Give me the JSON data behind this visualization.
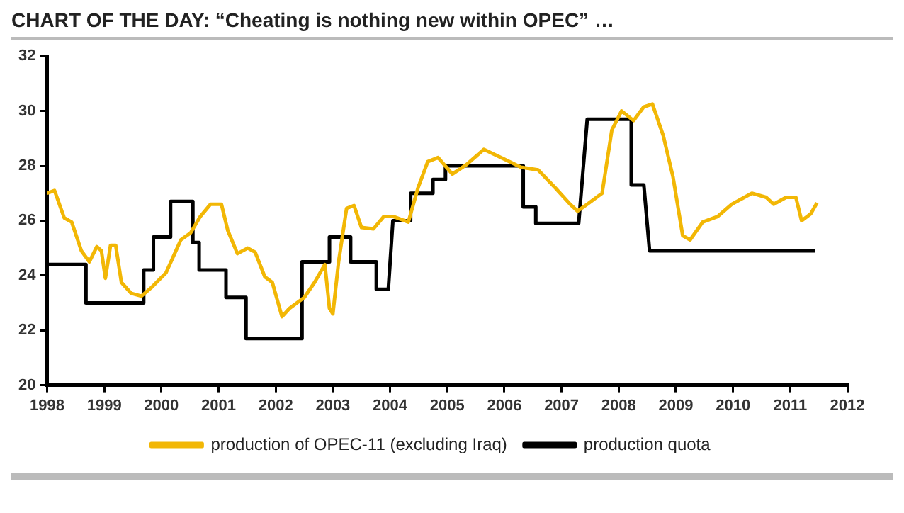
{
  "chart_data": {
    "type": "line",
    "title": "CHART OF THE DAY: “Cheating is nothing new within OPEC” …",
    "xlim": [
      1998,
      2012
    ],
    "xticks": [
      1998,
      1999,
      2000,
      2001,
      2002,
      2003,
      2004,
      2005,
      2006,
      2007,
      2008,
      2009,
      2010,
      2011,
      2012
    ],
    "ylim": [
      20,
      32
    ],
    "yticks": [
      20,
      22,
      24,
      26,
      28,
      30,
      32
    ],
    "grid": false,
    "legend": "bottom",
    "marker": "none",
    "line_style": "solid",
    "series": [
      {
        "name": "production of OPEC-11 (excluding Iraq)",
        "color": "#f2b705",
        "x": [
          1998.0,
          1998.13,
          1998.3,
          1998.43,
          1998.6,
          1998.74,
          1998.87,
          1998.95,
          1999.02,
          1999.11,
          1999.2,
          1999.3,
          1999.47,
          1999.65,
          1999.82,
          2000.08,
          2000.34,
          2000.51,
          2000.68,
          2000.86,
          2001.05,
          2001.16,
          2001.33,
          2001.51,
          2001.64,
          2001.81,
          2001.94,
          2002.11,
          2002.24,
          2002.5,
          2002.68,
          2002.86,
          2002.94,
          2003.0,
          2003.1,
          2003.24,
          2003.37,
          2003.5,
          2003.71,
          2003.89,
          2004.06,
          2004.32,
          2004.49,
          2004.66,
          2004.84,
          2005.09,
          2005.34,
          2005.64,
          2005.99,
          2006.29,
          2006.59,
          2006.89,
          2007.15,
          2007.28,
          2007.45,
          2007.71,
          2007.88,
          2008.05,
          2008.26,
          2008.44,
          2008.59,
          2008.78,
          2008.95,
          2009.12,
          2009.25,
          2009.47,
          2009.73,
          2009.98,
          2010.33,
          2010.58,
          2010.71,
          2010.93,
          2011.1,
          2011.2,
          2011.36,
          2011.47
        ],
        "values": [
          27.0,
          27.1,
          26.1,
          25.95,
          24.9,
          24.5,
          25.05,
          24.9,
          23.9,
          25.1,
          25.1,
          23.75,
          23.35,
          23.25,
          23.55,
          24.1,
          25.3,
          25.55,
          26.15,
          26.6,
          26.6,
          25.65,
          24.8,
          25.0,
          24.85,
          23.95,
          23.75,
          22.5,
          22.8,
          23.2,
          23.75,
          24.4,
          22.8,
          22.6,
          24.5,
          26.45,
          26.55,
          25.75,
          25.7,
          26.15,
          26.15,
          25.95,
          27.2,
          28.15,
          28.3,
          27.7,
          28.05,
          28.6,
          28.25,
          27.95,
          27.85,
          27.2,
          26.6,
          26.35,
          26.6,
          27.0,
          29.3,
          30.0,
          29.65,
          30.15,
          30.25,
          29.1,
          27.6,
          25.45,
          25.3,
          25.95,
          26.15,
          26.6,
          27.0,
          26.85,
          26.6,
          26.85,
          26.85,
          26.0,
          26.25,
          26.65
        ]
      },
      {
        "name": "production quota",
        "color": "#000000",
        "x": [
          1998.0,
          1998.68,
          1998.68,
          1999.69,
          1999.69,
          1999.86,
          1999.86,
          2000.16,
          2000.16,
          2000.55,
          2000.55,
          2000.66,
          2000.66,
          2001.13,
          2001.13,
          2001.48,
          2001.48,
          2002.46,
          2002.46,
          2002.94,
          2002.94,
          2003.31,
          2003.31,
          2003.76,
          2003.76,
          2003.97,
          2004.05,
          2004.36,
          2004.36,
          2004.75,
          2004.75,
          2004.97,
          2004.97,
          2006.33,
          2006.33,
          2006.55,
          2006.55,
          2007.3,
          2007.45,
          2008.22,
          2008.22,
          2008.44,
          2008.54,
          2011.44
        ],
        "values": [
          24.4,
          24.4,
          23.0,
          23.0,
          24.2,
          24.2,
          25.4,
          25.4,
          26.7,
          26.7,
          25.2,
          25.2,
          24.2,
          24.2,
          23.2,
          23.2,
          21.7,
          21.7,
          24.5,
          24.5,
          25.4,
          25.4,
          24.5,
          24.5,
          23.5,
          23.5,
          26.0,
          26.0,
          27.0,
          27.0,
          27.5,
          27.5,
          28.0,
          28.0,
          26.5,
          26.5,
          25.9,
          25.9,
          29.7,
          29.7,
          27.3,
          27.3,
          24.9,
          24.9
        ]
      }
    ]
  }
}
